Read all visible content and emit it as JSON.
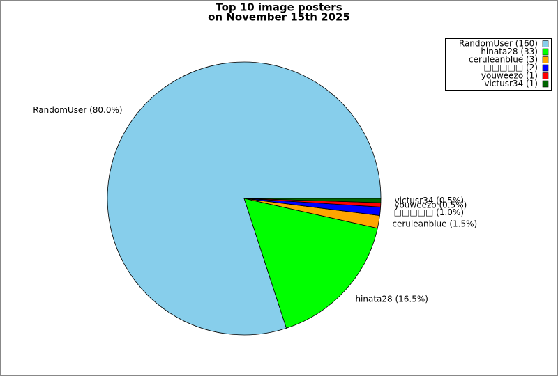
{
  "chart_data": {
    "type": "pie",
    "title": "Top 10 image posters",
    "subtitle": "on November 15th 2025",
    "categories": [
      "RandomUser",
      "hinata28",
      "ceruleanblue",
      "□□□□□",
      "youweezo",
      "victusr34"
    ],
    "values": [
      160,
      33,
      3,
      2,
      1,
      1
    ],
    "value_labels": [
      "RandomUser (80.0%)",
      "hinata28 (16.5%)",
      "ceruleanblue (1.5%)",
      "□□□□□ (1.0%)",
      "youweezo (0.5%)",
      "victusr34 (0.5%)"
    ],
    "legend_labels": [
      "RandomUser (160)",
      "hinata28 (33)",
      "ceruleanblue (3)",
      "□□□□□ (2)",
      "youweezo (1)",
      "victusr34 (1)"
    ],
    "colors": [
      "#87ceeb",
      "#00ff00",
      "#ffa500",
      "#0000ff",
      "#ff0000",
      "#006400"
    ],
    "legend": "upper right"
  }
}
